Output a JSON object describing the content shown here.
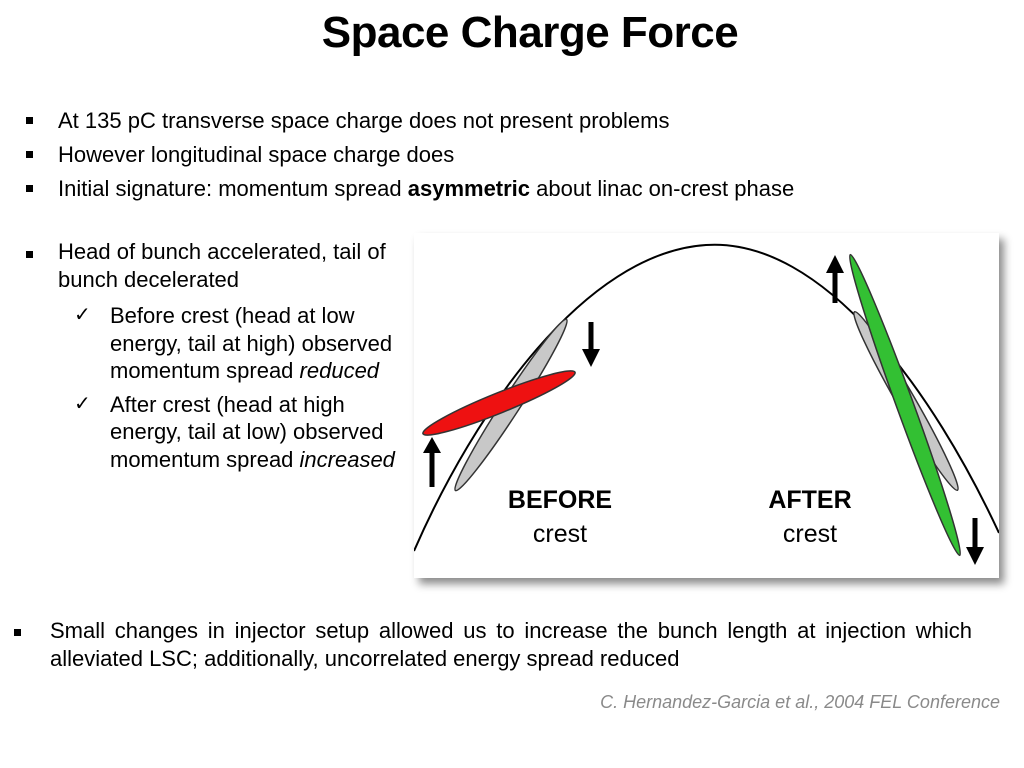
{
  "slide": {
    "title": "Space Charge Force",
    "bullets": [
      {
        "parts": [
          {
            "text": "At 135 pC transverse space charge does not present problems"
          }
        ]
      },
      {
        "parts": [
          {
            "text": "However longitudinal space charge does"
          }
        ]
      },
      {
        "parts": [
          {
            "text": "Initial signature: momentum spread "
          },
          {
            "text": "asymmetric",
            "bold": true
          },
          {
            "text": " about linac on-crest phase"
          }
        ]
      }
    ],
    "side_bullet": "Head of bunch accelerated, tail of bunch decelerated",
    "sub_bullets": [
      {
        "text": "Before crest (head at low energy, tail at high) observed momentum spread ",
        "emph": "reduced"
      },
      {
        "text": "After crest (head at high energy, tail at low) observed momentum spread ",
        "emph": "increased"
      }
    ],
    "figure": {
      "before_label": "BEFORE",
      "before_sub": "crest",
      "after_label": "AFTER",
      "after_sub": "crest",
      "colors": {
        "red_bunch": "#ee1111",
        "green_bunch": "#33c033",
        "gray_bunch": "#c8c8c8"
      }
    },
    "bottom_bullet": "Small changes in injector setup allowed us to increase the bunch length at injection which alleviated LSC; additionally, uncorrelated energy spread reduced",
    "citation": "C. Hernandez-Garcia et al., 2004 FEL Conference"
  }
}
